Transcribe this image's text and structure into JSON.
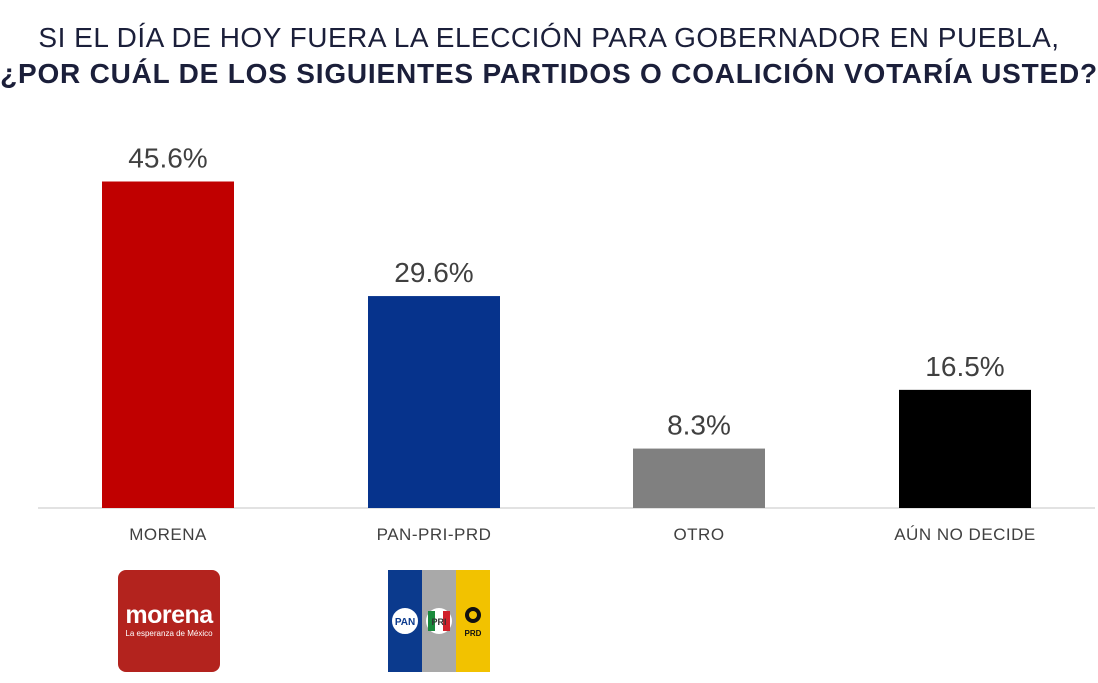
{
  "chart_data": {
    "type": "bar",
    "title_line1": "SI EL DÍA DE HOY FUERA LA ELECCIÓN PARA GOBERNADOR EN PUEBLA,",
    "title_line2": "¿POR CUÁL DE LOS SIGUIENTES PARTIDOS O COALICIÓN VOTARÍA USTED?",
    "categories": [
      "MORENA",
      "PAN-PRI-PRD",
      "OTRO",
      "AÚN NO DECIDE"
    ],
    "values": [
      45.6,
      29.6,
      8.3,
      16.5
    ],
    "value_labels": [
      "45.6%",
      "29.6%",
      "8.3%",
      "16.5%"
    ],
    "colors": [
      "#c00000",
      "#06338c",
      "#808080",
      "#000000"
    ],
    "ylim": [
      0,
      50
    ],
    "grid": false,
    "legend": "none"
  },
  "logos": {
    "morena": {
      "word": "morena",
      "tagline": "La esperanza de México"
    },
    "coalition": {
      "pan": "PAN",
      "pri": "PRI",
      "prd": "PRD"
    }
  }
}
